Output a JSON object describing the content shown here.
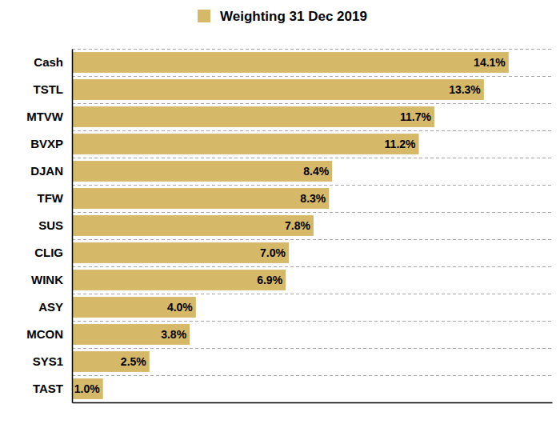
{
  "chart_data": {
    "type": "bar",
    "orientation": "horizontal",
    "categories": [
      "Cash",
      "TSTL",
      "MTVW",
      "BVXP",
      "DJAN",
      "TFW",
      "SUS",
      "CLIG",
      "WINK",
      "ASY",
      "MCON",
      "SYS1",
      "TAST"
    ],
    "series": [
      {
        "name": "Weighting 31 Dec 2019",
        "color": "#d6b869",
        "values": [
          14.1,
          13.3,
          11.7,
          11.2,
          8.4,
          8.3,
          7.8,
          7.0,
          6.9,
          4.0,
          3.8,
          2.5,
          1.0
        ],
        "value_labels": [
          "14.1%",
          "13.3%",
          "11.7%",
          "11.2%",
          "8.4%",
          "8.3%",
          "7.8%",
          "7.0%",
          "6.9%",
          "4.0%",
          "3.8%",
          "2.5%",
          "1.0%"
        ]
      }
    ],
    "xlim": [
      0,
      15.5
    ],
    "xticks": [],
    "tick_labels": "y",
    "grid": true,
    "legend": "top",
    "data_labels": true
  }
}
